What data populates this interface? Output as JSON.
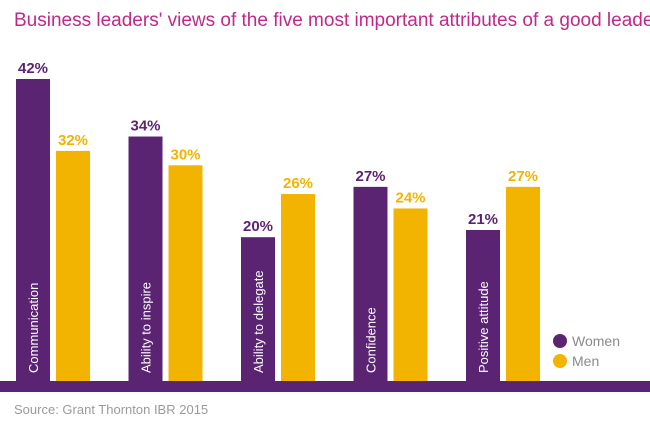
{
  "title": "Business leaders' views of the five most important attributes of a good leader",
  "source": "Source: Grant Thornton IBR 2015",
  "colors": {
    "women": "#5b2473",
    "men": "#f2b400",
    "title": "#c0288a",
    "baseline": "#5b2473"
  },
  "chart_data": {
    "type": "bar",
    "title": "Business leaders' views of the five most important attributes of a good leader",
    "categories": [
      "Communication",
      "Ability to inspire",
      "Ability to delegate",
      "Confidence",
      "Positive attitude"
    ],
    "series": [
      {
        "name": "Women",
        "values": [
          42,
          34,
          20,
          27,
          21
        ],
        "labels": [
          "42%",
          "34%",
          "20%",
          "27%",
          "21%"
        ]
      },
      {
        "name": "Men",
        "values": [
          32,
          30,
          26,
          24,
          27
        ],
        "labels": [
          "32%",
          "30%",
          "26%",
          "24%",
          "27%"
        ]
      }
    ],
    "ylim": [
      0,
      42
    ],
    "grid": false,
    "legend": "bottom-right"
  }
}
